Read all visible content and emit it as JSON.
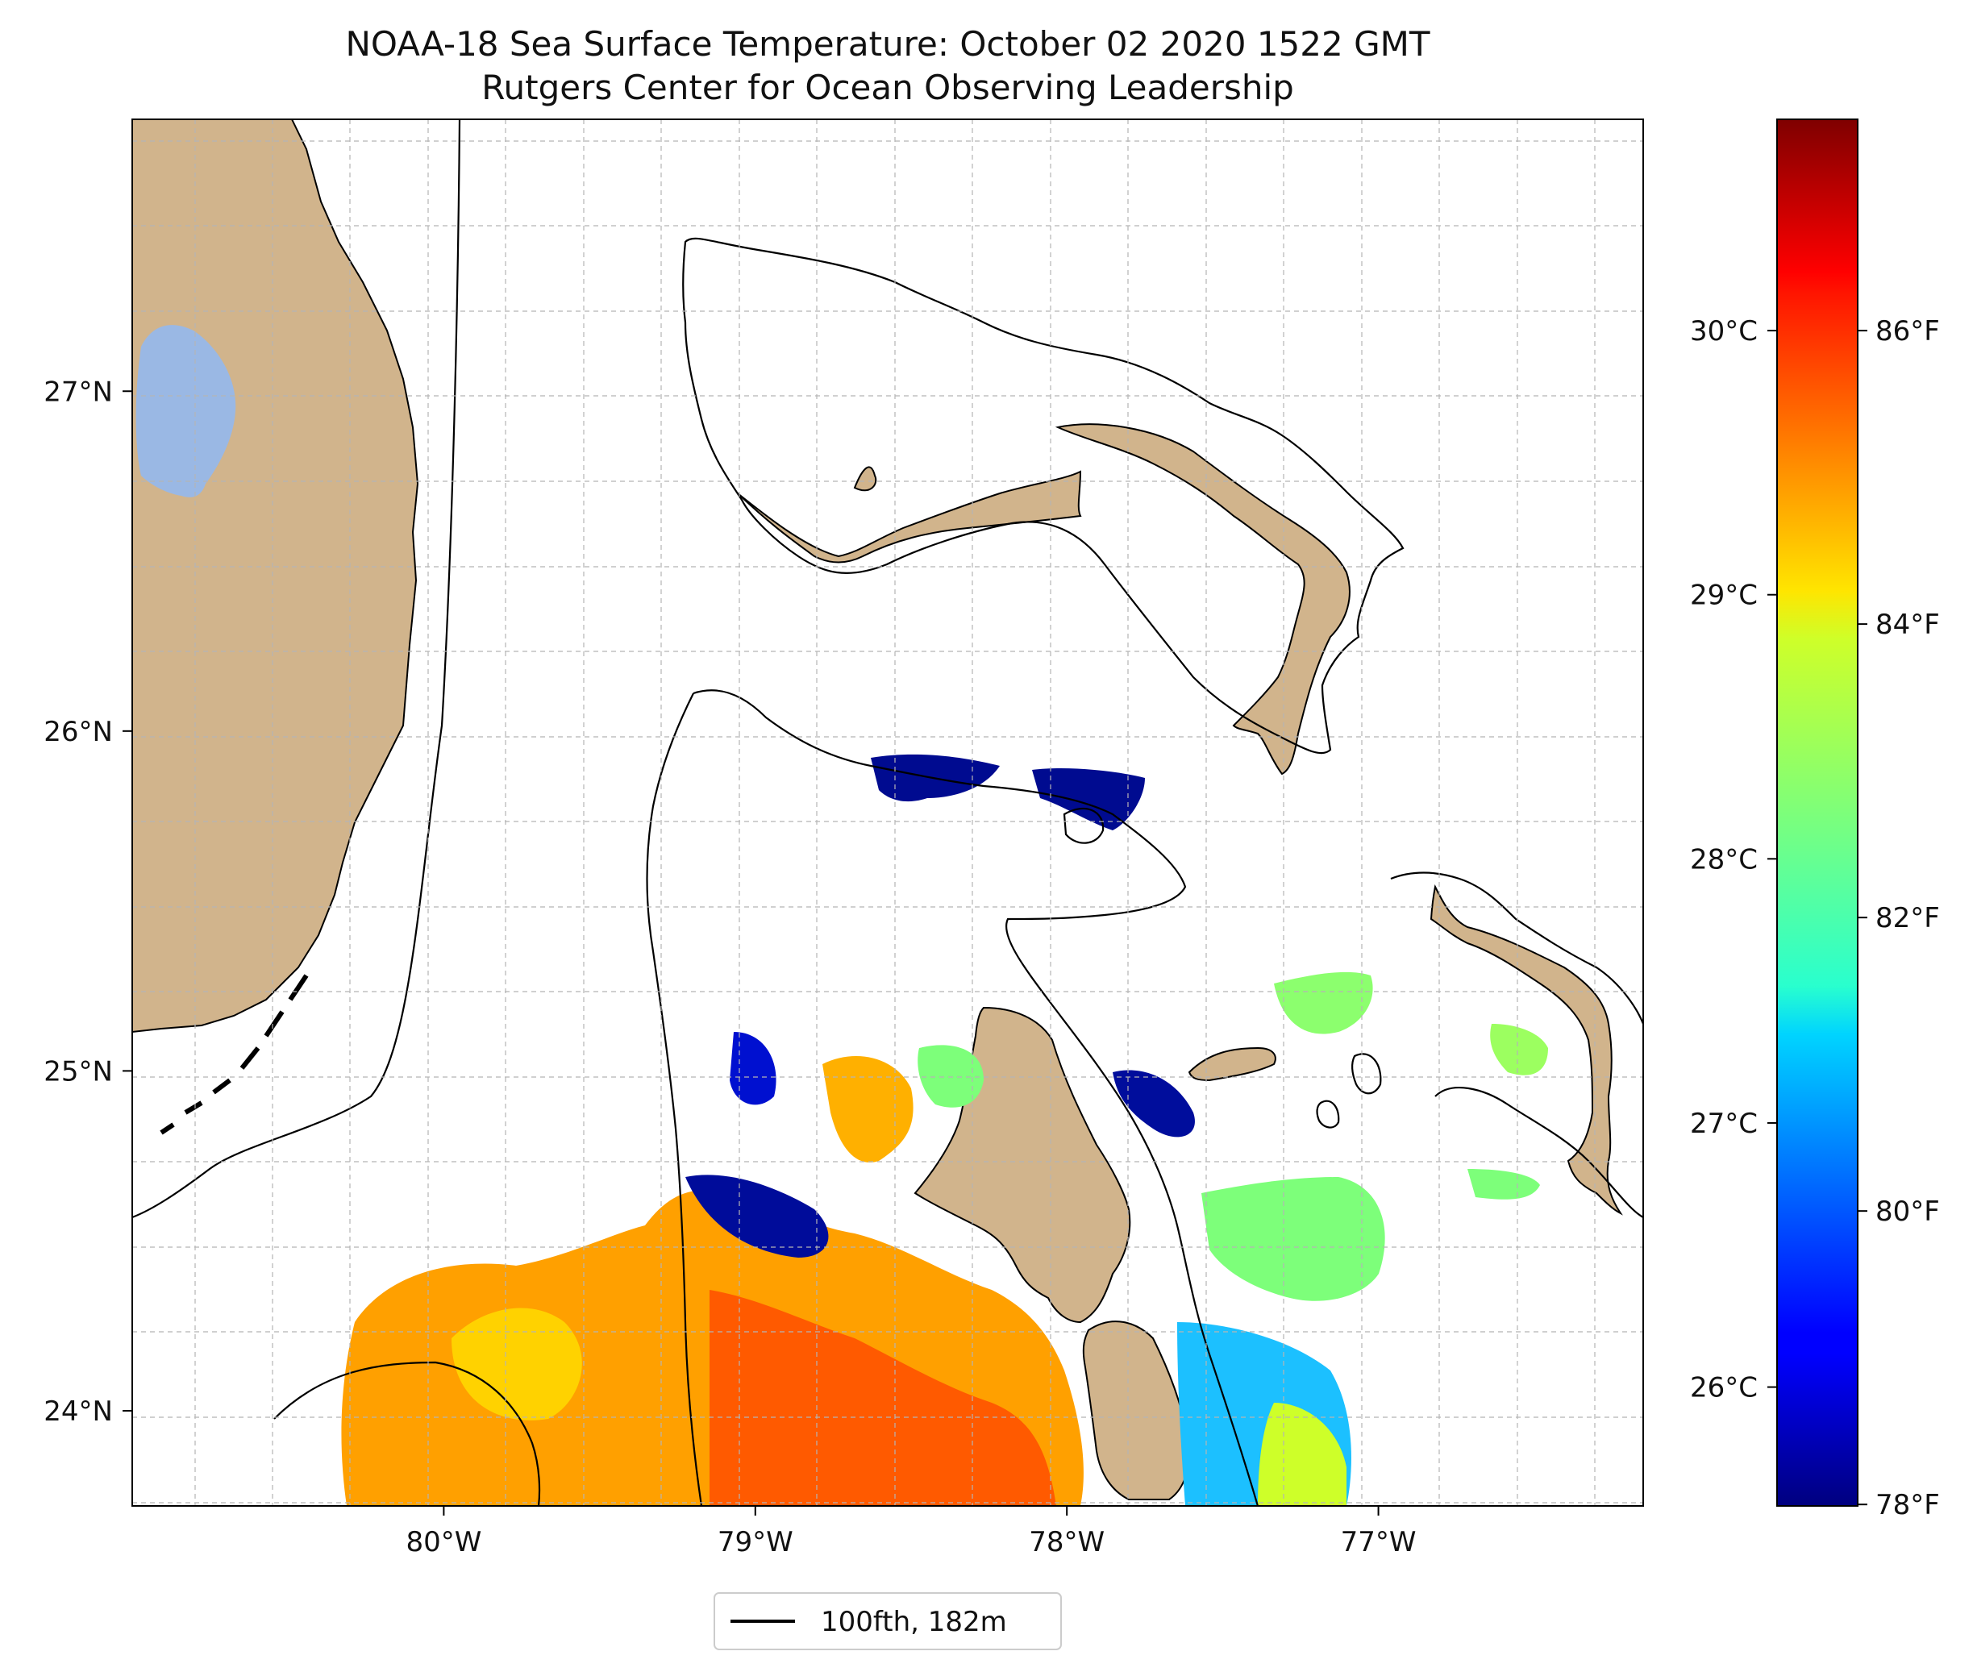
{
  "title": "NOAA-18 Sea Surface Temperature: October 02 2020 1522 GMT",
  "subtitle": "Rutgers Center for Ocean Observing Leadership",
  "map": {
    "lon_range": [
      -81.0,
      -76.15
    ],
    "lat_range": [
      23.72,
      27.8
    ],
    "lon_ticks": [
      {
        "value": -80,
        "label": "80°W"
      },
      {
        "value": -79,
        "label": "79°W"
      },
      {
        "value": -78,
        "label": "78°W"
      },
      {
        "value": -77,
        "label": "77°W"
      }
    ],
    "lat_ticks": [
      {
        "value": 24,
        "label": "24°N"
      },
      {
        "value": 25,
        "label": "25°N"
      },
      {
        "value": 26,
        "label": "26°N"
      },
      {
        "value": 27,
        "label": "27°N"
      }
    ],
    "gridlines": true,
    "colors": {
      "land": "#d1b48c",
      "lake": "#9ab8e4",
      "grid": "#b5b5b5"
    }
  },
  "colorbar": {
    "colormap": "jet",
    "celsius_range": [
      25.55,
      30.8
    ],
    "celsius_ticks": [
      {
        "value": 26,
        "label": "26°C"
      },
      {
        "value": 27,
        "label": "27°C"
      },
      {
        "value": 28,
        "label": "28°C"
      },
      {
        "value": 29,
        "label": "29°C"
      },
      {
        "value": 30,
        "label": "30°C"
      }
    ],
    "fahrenheit_ticks": [
      {
        "value": 78,
        "label": "78°F"
      },
      {
        "value": 80,
        "label": "80°F"
      },
      {
        "value": 82,
        "label": "82°F"
      },
      {
        "value": 84,
        "label": "84°F"
      },
      {
        "value": 86,
        "label": "86°F"
      }
    ]
  },
  "legend": {
    "entries": [
      {
        "label": "100fth, 182m",
        "color": "#000000"
      }
    ]
  }
}
